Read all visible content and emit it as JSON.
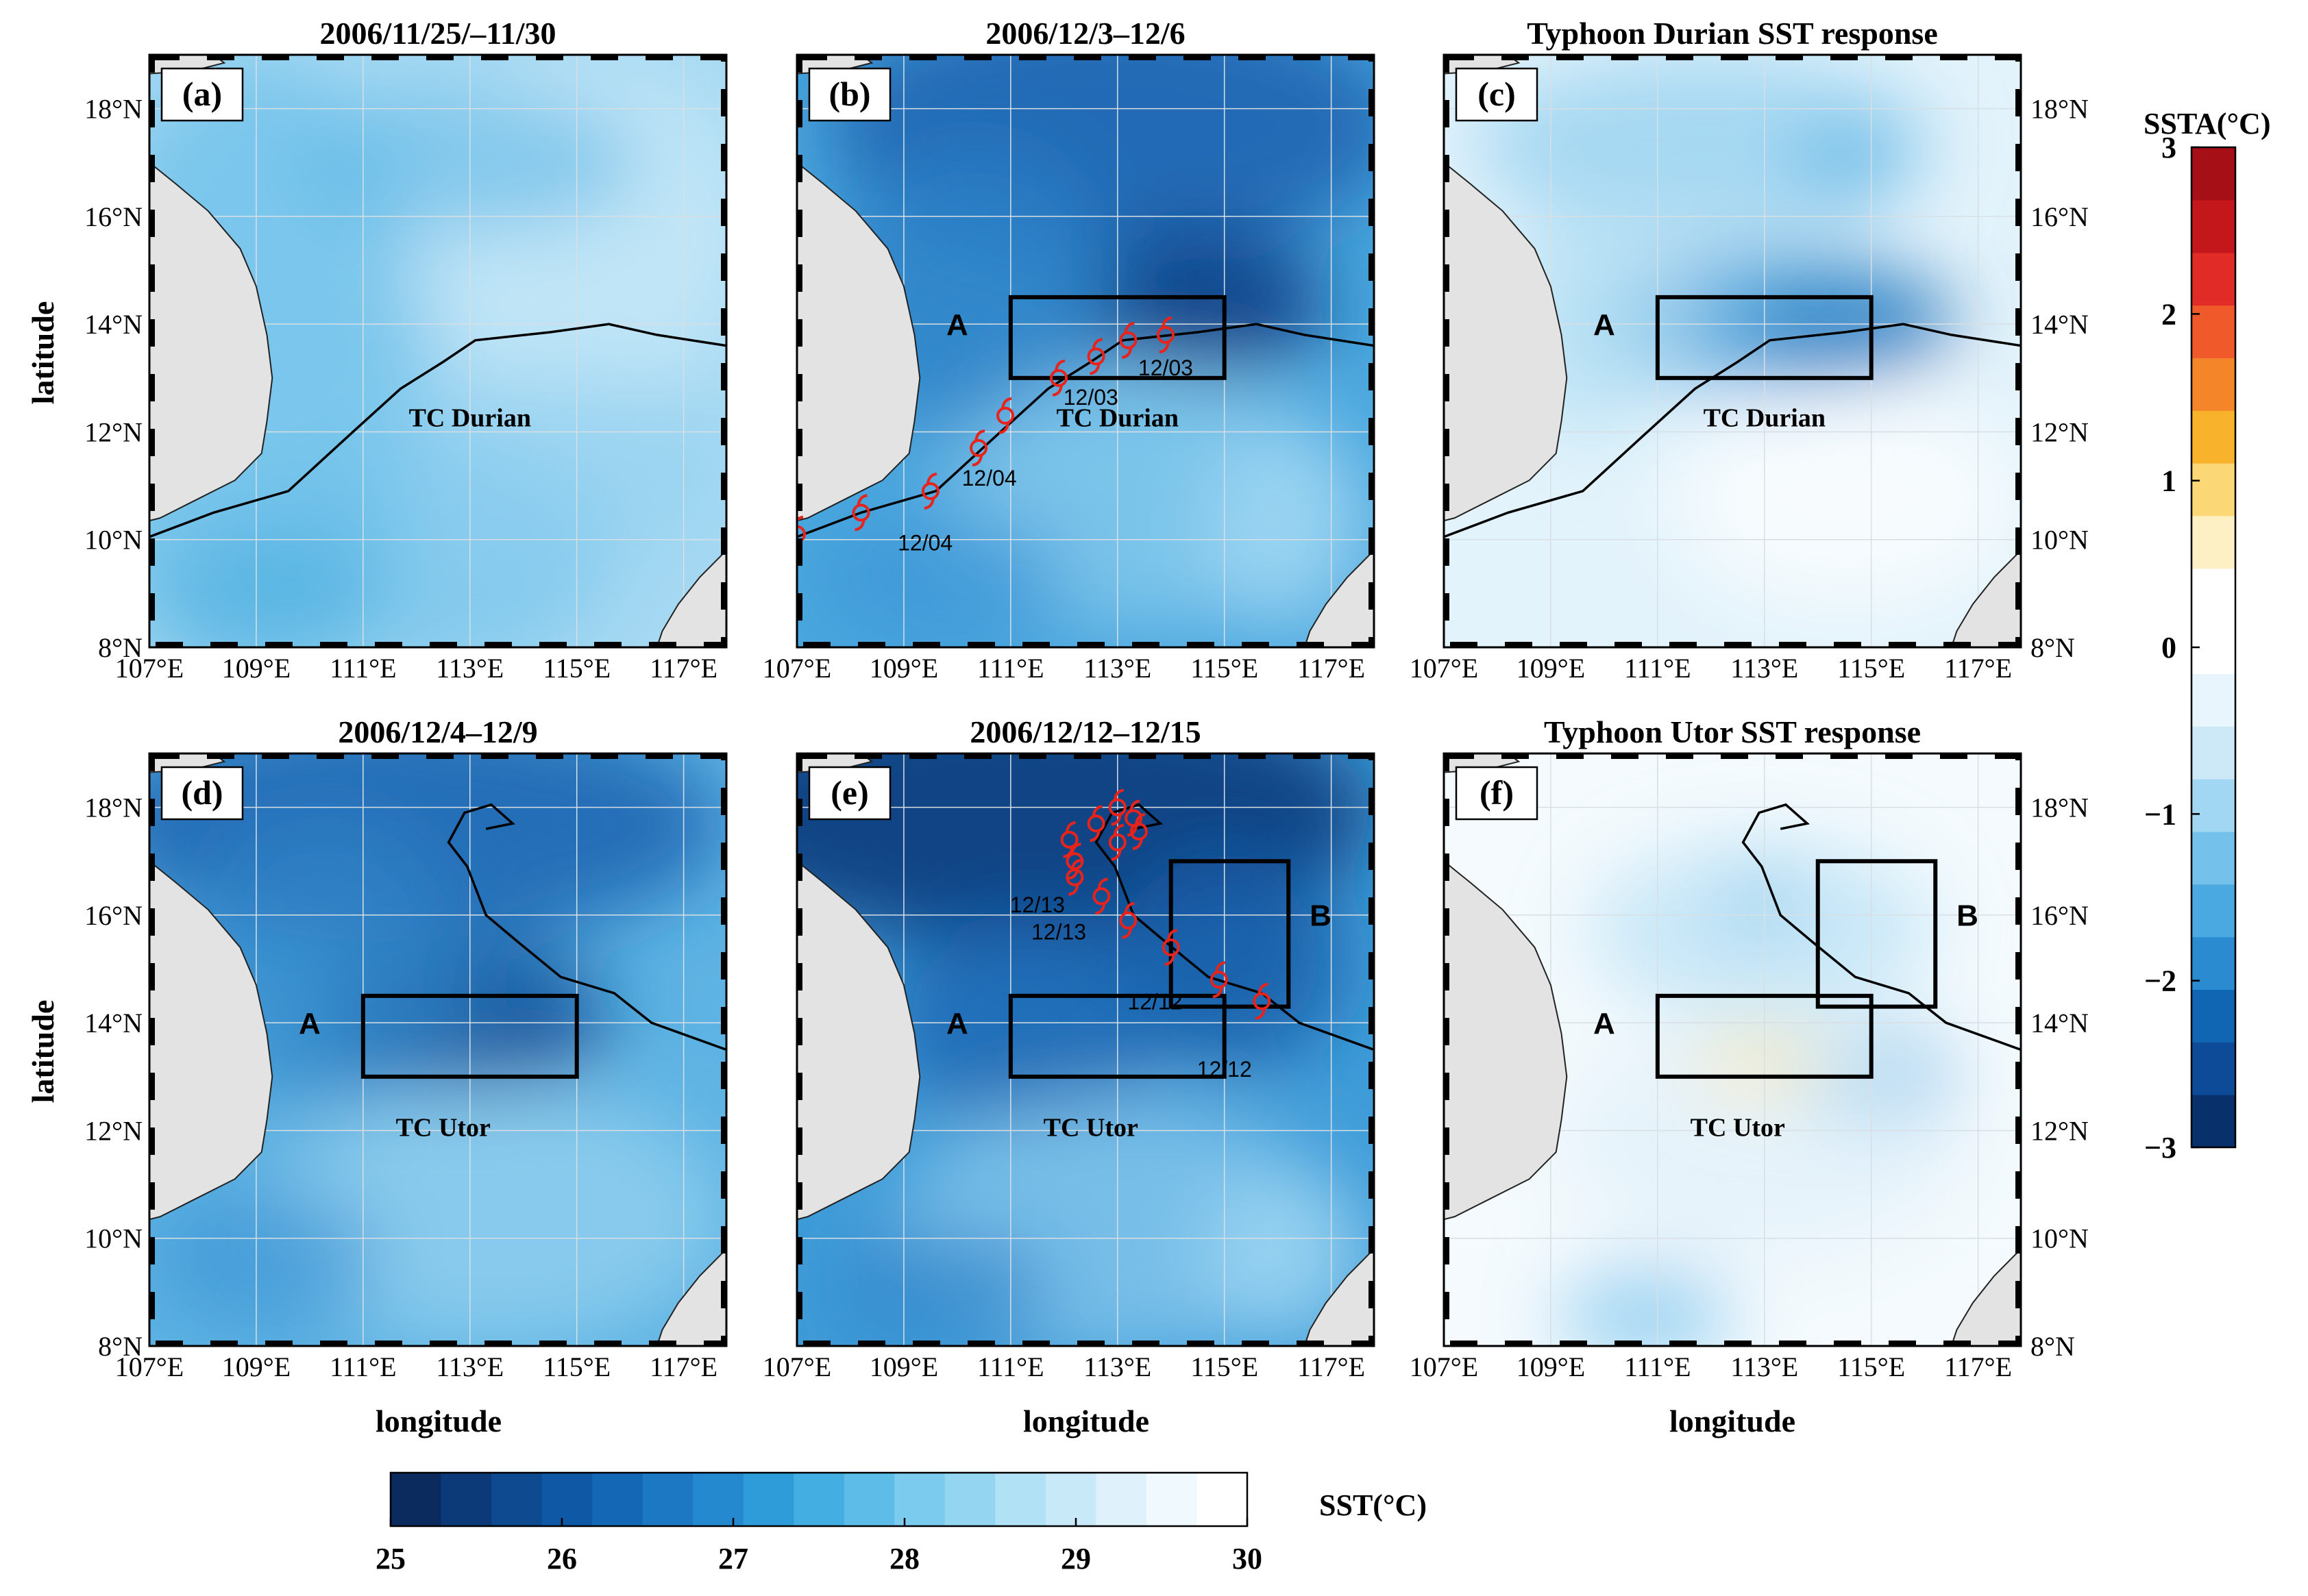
{
  "figure": {
    "panels": [
      {
        "id": "a",
        "label": "(a)",
        "title": "2006/11/25/–11/30",
        "field": "sst",
        "theme": "light",
        "track_name": "TC Durian",
        "track": "durian",
        "boxes": [],
        "markers": [],
        "date_labels": [],
        "region_labels": [],
        "lat_side": "left"
      },
      {
        "id": "b",
        "label": "(b)",
        "title": "2006/12/3–12/6",
        "field": "sst",
        "theme": "dark",
        "track_name": "TC Durian",
        "track": "durian",
        "boxes": [
          "A"
        ],
        "markers": "durian",
        "date_labels": [
          "12/03",
          "12/03",
          "12/04",
          "12/04"
        ],
        "region_labels": [
          "A"
        ],
        "lat_side": "none"
      },
      {
        "id": "c",
        "label": "(c)",
        "title": "Typhoon Durian SST response",
        "field": "ssta",
        "theme": "durian",
        "track_name": "TC Durian",
        "track": "durian",
        "boxes": [
          "A"
        ],
        "markers": [],
        "date_labels": [],
        "region_labels": [
          "A"
        ],
        "lat_side": "right"
      },
      {
        "id": "d",
        "label": "(d)",
        "title": "2006/12/4–12/9",
        "field": "sst",
        "theme": "mid",
        "track_name": "TC Utor",
        "track": "utor",
        "boxes": [
          "A"
        ],
        "markers": [],
        "date_labels": [],
        "region_labels": [
          "A"
        ],
        "lat_side": "left"
      },
      {
        "id": "e",
        "label": "(e)",
        "title": "2006/12/12–12/15",
        "field": "sst",
        "theme": "dark2",
        "track_name": "TC Utor",
        "track": "utor",
        "boxes": [
          "A",
          "B"
        ],
        "markers": "utor",
        "date_labels": [
          "12/13",
          "12/13",
          "12/12",
          "12/12"
        ],
        "region_labels": [
          "A",
          "B"
        ],
        "lat_side": "none"
      },
      {
        "id": "f",
        "label": "(f)",
        "title": "Typhoon Utor SST response",
        "field": "ssta",
        "theme": "utor",
        "track_name": "TC Utor",
        "track": "utor",
        "boxes": [
          "A",
          "B"
        ],
        "markers": [],
        "date_labels": [],
        "region_labels": [
          "A",
          "B"
        ],
        "lat_side": "right"
      }
    ],
    "lon_ticks": [
      "107°E",
      "109°E",
      "111°E",
      "113°E",
      "115°E",
      "117°E"
    ],
    "lat_ticks": [
      "8°N",
      "10°N",
      "12°N",
      "14°N",
      "16°N",
      "18°N"
    ],
    "lon_ticks_values": [
      107,
      109,
      111,
      113,
      115,
      117
    ],
    "lat_ticks_values": [
      8,
      10,
      12,
      14,
      16,
      18
    ],
    "extent": {
      "lon": [
        107,
        117.8
      ],
      "lat": [
        8,
        19
      ]
    },
    "xlabel": "longitude",
    "ylabel": "latitude",
    "region_boxes": {
      "A": {
        "lon": [
          111,
          115
        ],
        "lat": [
          13,
          14.5
        ]
      },
      "B": {
        "lon": [
          114,
          116.2
        ],
        "lat": [
          14.3,
          17
        ]
      }
    },
    "region_text": {
      "A": "A",
      "B": "B"
    },
    "tracks": {
      "durian": [
        [
          107,
          10.05
        ],
        [
          108.2,
          10.5
        ],
        [
          109.6,
          10.9
        ],
        [
          110.7,
          11.9
        ],
        [
          111.7,
          12.8
        ],
        [
          112.5,
          13.3
        ],
        [
          113.1,
          13.7
        ],
        [
          114.5,
          13.85
        ],
        [
          115.6,
          14.0
        ],
        [
          116.5,
          13.8
        ],
        [
          117.8,
          13.6
        ]
      ],
      "utor": [
        [
          113.3,
          17.6
        ],
        [
          113.8,
          17.7
        ],
        [
          113.4,
          18.05
        ],
        [
          112.9,
          17.9
        ],
        [
          112.6,
          17.35
        ],
        [
          112.95,
          16.9
        ],
        [
          113.3,
          16.0
        ],
        [
          113.9,
          15.5
        ],
        [
          114.7,
          14.85
        ],
        [
          115.7,
          14.55
        ],
        [
          116.4,
          14.0
        ],
        [
          117.8,
          13.5
        ]
      ]
    },
    "markers": {
      "durian": [
        [
          107,
          10.1
        ],
        [
          108.2,
          10.5
        ],
        [
          109.5,
          10.9
        ],
        [
          110.4,
          11.7
        ],
        [
          110.9,
          12.3
        ],
        [
          111.9,
          13.0
        ],
        [
          112.6,
          13.4
        ],
        [
          113.2,
          13.7
        ],
        [
          113.9,
          13.8
        ]
      ],
      "utor": [
        [
          112.1,
          17.4
        ],
        [
          112.6,
          17.7
        ],
        [
          113.0,
          18.0
        ],
        [
          113.3,
          17.8
        ],
        [
          112.2,
          17.0
        ],
        [
          113.0,
          17.35
        ],
        [
          113.4,
          17.55
        ],
        [
          112.2,
          16.7
        ],
        [
          112.7,
          16.35
        ],
        [
          113.2,
          15.9
        ],
        [
          114.0,
          15.4
        ],
        [
          114.9,
          14.8
        ],
        [
          115.7,
          14.4
        ]
      ]
    },
    "date_label_pos": {
      "durian": [
        [
          113.9,
          13.05
        ],
        [
          112.5,
          12.5
        ],
        [
          110.6,
          11.0
        ],
        [
          109.4,
          9.8
        ]
      ],
      "utor": [
        [
          111.5,
          16.05
        ],
        [
          111.9,
          15.55
        ],
        [
          113.7,
          14.25
        ],
        [
          115.0,
          13.0
        ]
      ]
    },
    "track_label_pos": {
      "durian": [
        113.0,
        12.1
      ],
      "utor": [
        112.5,
        11.9
      ]
    },
    "sst_colorbar": {
      "label": "SST(°C)",
      "min": 25,
      "max": 30,
      "ticks": [
        "25",
        "26",
        "27",
        "28",
        "29",
        "30"
      ],
      "colors": [
        "#0b2a5e",
        "#0c3a79",
        "#0d4a90",
        "#0f58a6",
        "#1367b5",
        "#1c78c3",
        "#2589cf",
        "#2e9cd9",
        "#43aee2",
        "#5dbde8",
        "#7acbed",
        "#94d6f1",
        "#b0e1f5",
        "#c8eaf8",
        "#dff2fb",
        "#f0f9fd",
        "#ffffff"
      ]
    },
    "ssta_colorbar": {
      "label": "SSTA(°C)",
      "min": -3,
      "max": 3,
      "ticks": [
        "3",
        "2",
        "1",
        "0",
        "−1",
        "−2",
        "−3"
      ],
      "colors": [
        "#08306b",
        "#0d4a98",
        "#1166b4",
        "#2a8bd0",
        "#4aa9e0",
        "#74c2ec",
        "#a2d7f3",
        "#cde9f8",
        "#e8f5fc",
        "#ffffff",
        "#ffffff",
        "#fdf0c4",
        "#fcd775",
        "#f8b22c",
        "#f58529",
        "#f05a2a",
        "#e02b26",
        "#c4171c",
        "#a50f15"
      ]
    },
    "legend_colors": {
      "land": "#e3e3e3",
      "box": "#000000",
      "marker": "#e8231c",
      "track": "#000000"
    }
  }
}
